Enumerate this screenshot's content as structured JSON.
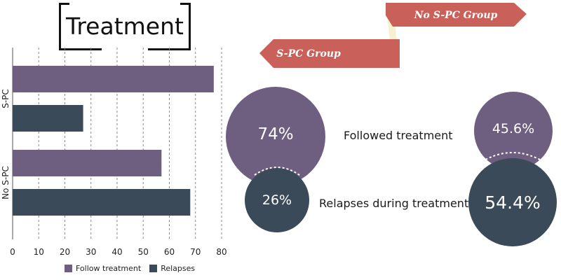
{
  "title": "Treatment",
  "colors": {
    "follow": "#6e5e80",
    "relapse": "#3a4a58",
    "ribbon": "#c9605a",
    "ribbon_fold": "#f6f2cf"
  },
  "ribbons": {
    "no_spc": "No S-PC Group",
    "spc": "S-PC Group"
  },
  "legend": {
    "follow": "Follow treatment",
    "relapses": "Relapses"
  },
  "row_labels": {
    "followed": "Followed treatment",
    "relapses": "Relapses during treatment"
  },
  "spc_group": {
    "followed": "74%",
    "relapses": "26%"
  },
  "no_spc_group": {
    "followed": "45.6%",
    "relapses": "54.4%"
  },
  "chart_data": {
    "type": "bar",
    "orientation": "horizontal",
    "categories": [
      "S-PC",
      "No S-PC"
    ],
    "series": [
      {
        "name": "Follow treatment",
        "values": [
          77,
          57
        ]
      },
      {
        "name": "Relapses",
        "values": [
          27,
          68
        ]
      }
    ],
    "xlim": [
      0,
      80
    ],
    "xticks": [
      0,
      10,
      20,
      30,
      40,
      50,
      60,
      70,
      80
    ],
    "grid": true,
    "legend_position": "bottom"
  }
}
